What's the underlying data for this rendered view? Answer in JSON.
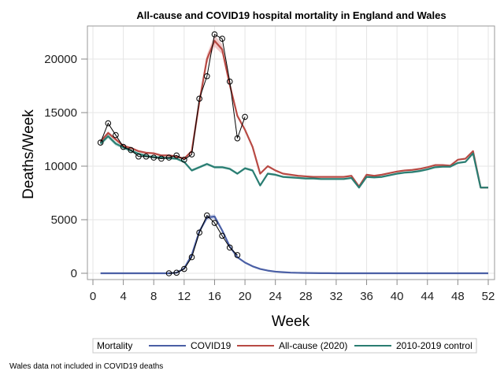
{
  "chart_data": {
    "type": "line",
    "title": "All-cause and COVID19 hospital mortality in England and Wales",
    "xlabel": "Week",
    "ylabel": "Deaths/Week",
    "xlim": [
      0,
      52
    ],
    "ylim": [
      -800,
      23000
    ],
    "x_ticks": [
      0,
      4,
      8,
      12,
      16,
      20,
      24,
      28,
      32,
      36,
      40,
      44,
      48,
      52
    ],
    "y_ticks": [
      0,
      5000,
      10000,
      15000,
      20000
    ],
    "y_tick_labels": [
      "0",
      "5000",
      "10000",
      "15000",
      "20000"
    ],
    "grid": true,
    "legend": {
      "title": "Mortality",
      "placement": "bottom",
      "entries": [
        {
          "label": "COVID19",
          "color": "#4a5fa5"
        },
        {
          "label": "All-cause (2020)",
          "color": "#b84a44"
        },
        {
          "label": "2010-2019 control",
          "color": "#2a7d72"
        }
      ]
    },
    "footnote": "Wales data not included in COVID19 deaths",
    "series": [
      {
        "name": "All-cause (2020)",
        "kind": "line",
        "color": "#b84a44",
        "band_color": "#e8a0a0",
        "x": [
          1,
          2,
          3,
          4,
          5,
          6,
          7,
          8,
          9,
          10,
          11,
          12,
          13,
          14,
          15,
          16,
          17,
          18,
          19,
          20,
          21,
          22,
          23,
          24,
          25,
          26,
          27,
          28,
          29,
          30,
          31,
          32,
          33,
          34,
          35,
          36,
          37,
          38,
          39,
          40,
          41,
          42,
          43,
          44,
          45,
          46,
          47,
          48,
          49,
          50,
          51,
          52
        ],
        "values": [
          12300,
          13100,
          12500,
          11900,
          11700,
          11400,
          11250,
          11200,
          11000,
          11000,
          10900,
          10700,
          11400,
          16000,
          20000,
          21700,
          20900,
          17600,
          14700,
          13400,
          11800,
          9300,
          10000,
          9600,
          9300,
          9200,
          9100,
          9050,
          9000,
          9000,
          9000,
          9000,
          9000,
          9100,
          8100,
          9200,
          9100,
          9200,
          9350,
          9500,
          9600,
          9650,
          9750,
          9900,
          10100,
          10100,
          10050,
          10600,
          10700,
          11400,
          8000,
          8000
        ],
        "band_halfwidth": [
          150,
          150,
          150,
          100,
          100,
          100,
          100,
          100,
          100,
          100,
          100,
          100,
          150,
          300,
          450,
          550,
          450,
          300,
          150,
          100,
          100,
          80,
          80,
          60,
          60,
          50,
          50,
          50,
          50,
          50,
          50,
          50,
          50,
          50,
          50,
          50,
          50,
          50,
          50,
          50,
          50,
          50,
          50,
          50,
          50,
          50,
          50,
          50,
          50,
          60,
          60,
          60
        ]
      },
      {
        "name": "2010-2019 control",
        "kind": "line",
        "color": "#2a7d72",
        "band_color": "#8fcac0",
        "x": [
          1,
          2,
          3,
          4,
          5,
          6,
          7,
          8,
          9,
          10,
          11,
          12,
          13,
          14,
          15,
          16,
          17,
          18,
          19,
          20,
          21,
          22,
          23,
          24,
          25,
          26,
          27,
          28,
          29,
          30,
          31,
          32,
          33,
          34,
          35,
          36,
          37,
          38,
          39,
          40,
          41,
          42,
          43,
          44,
          45,
          46,
          47,
          48,
          49,
          50,
          51,
          52
        ],
        "values": [
          12100,
          12800,
          12100,
          11750,
          11450,
          11150,
          10950,
          10850,
          10800,
          10750,
          10700,
          10400,
          9600,
          9900,
          10200,
          9900,
          9900,
          9750,
          9300,
          9800,
          9600,
          8200,
          9300,
          9200,
          9000,
          8950,
          8900,
          8850,
          8850,
          8800,
          8800,
          8800,
          8800,
          8900,
          8000,
          9000,
          8950,
          9000,
          9150,
          9300,
          9400,
          9450,
          9550,
          9700,
          9900,
          9950,
          9950,
          10300,
          10400,
          11200,
          8000,
          8000
        ],
        "band_halfwidth": [
          200,
          200,
          200,
          150,
          150,
          150,
          150,
          120,
          120,
          120,
          120,
          120,
          120,
          120,
          120,
          120,
          120,
          120,
          120,
          120,
          120,
          100,
          100,
          100,
          100,
          100,
          100,
          100,
          100,
          100,
          100,
          100,
          100,
          100,
          100,
          100,
          100,
          100,
          100,
          100,
          100,
          100,
          100,
          100,
          100,
          100,
          100,
          100,
          100,
          100,
          100,
          100
        ]
      },
      {
        "name": "COVID19",
        "kind": "line",
        "color": "#4a5fa5",
        "band_color": "#9ea9d6",
        "x": [
          1,
          2,
          3,
          4,
          5,
          6,
          7,
          8,
          9,
          10,
          11,
          12,
          13,
          14,
          15,
          16,
          17,
          18,
          19,
          20,
          21,
          22,
          23,
          24,
          25,
          26,
          27,
          28,
          29,
          30,
          31,
          32,
          33,
          34,
          35,
          36,
          37,
          38,
          39,
          40,
          41,
          42,
          43,
          44,
          45,
          46,
          47,
          48,
          49,
          50,
          51,
          52
        ],
        "values": [
          0,
          0,
          0,
          0,
          0,
          0,
          0,
          0,
          0,
          0,
          50,
          450,
          1700,
          3900,
          5200,
          5300,
          4000,
          2500,
          1500,
          1000,
          650,
          400,
          250,
          150,
          100,
          60,
          40,
          30,
          20,
          10,
          10,
          0,
          0,
          0,
          0,
          0,
          0,
          0,
          0,
          0,
          0,
          0,
          0,
          0,
          0,
          0,
          0,
          0,
          0,
          0,
          0,
          0
        ],
        "band_halfwidth": [
          0,
          0,
          0,
          0,
          0,
          0,
          0,
          0,
          0,
          0,
          20,
          60,
          100,
          150,
          200,
          200,
          150,
          100,
          80,
          60,
          40,
          30,
          20,
          10,
          10,
          0,
          0,
          0,
          0,
          0,
          0,
          0,
          0,
          0,
          0,
          0,
          0,
          0,
          0,
          0,
          0,
          0,
          0,
          0,
          0,
          0,
          0,
          0,
          0,
          0,
          0,
          0
        ]
      },
      {
        "name": "All-cause observed points",
        "kind": "markers",
        "color": "#000000",
        "x": [
          1,
          2,
          3,
          4,
          5,
          6,
          7,
          8,
          9,
          10,
          11,
          12,
          13,
          14,
          15,
          16,
          17,
          18,
          19,
          20
        ],
        "values": [
          12200,
          14000,
          12900,
          11800,
          11500,
          10900,
          10900,
          10800,
          10700,
          10800,
          11000,
          10600,
          11100,
          16300,
          18400,
          22300,
          21900,
          17900,
          12600,
          14600
        ]
      },
      {
        "name": "COVID19 observed points",
        "kind": "markers",
        "color": "#000000",
        "x": [
          10,
          11,
          12,
          13,
          14,
          15,
          16,
          17,
          18,
          19
        ],
        "values": [
          0,
          50,
          400,
          1500,
          3800,
          5400,
          4700,
          3500,
          2400,
          1700
        ]
      }
    ]
  }
}
